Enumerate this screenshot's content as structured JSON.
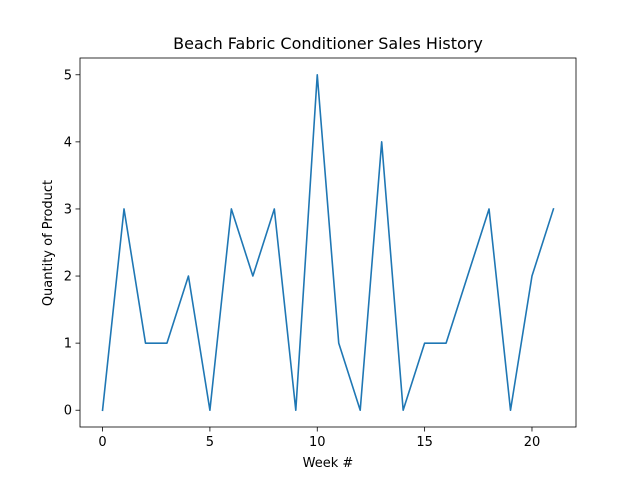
{
  "chart_data": {
    "type": "line",
    "title": "Beach Fabric Conditioner Sales History",
    "xlabel": "Week #",
    "ylabel": "Quantity of Product",
    "xlim": [
      -1.05,
      22.05
    ],
    "ylim": [
      -0.25,
      5.25
    ],
    "xticks": [
      0,
      5,
      10,
      15,
      20
    ],
    "yticks": [
      0,
      1,
      2,
      3,
      4,
      5
    ],
    "grid": false,
    "legend": "none",
    "series": [
      {
        "color": "#1f77b4",
        "x": [
          0,
          1,
          2,
          3,
          4,
          5,
          6,
          7,
          8,
          9,
          10,
          11,
          12,
          13,
          14,
          15,
          16,
          17,
          18,
          19,
          20,
          21
        ],
        "values": [
          0,
          3,
          1,
          1,
          2,
          0,
          3,
          2,
          3,
          0,
          5,
          1,
          0,
          4,
          0,
          1,
          1,
          2,
          3,
          0,
          2,
          3
        ]
      }
    ]
  }
}
